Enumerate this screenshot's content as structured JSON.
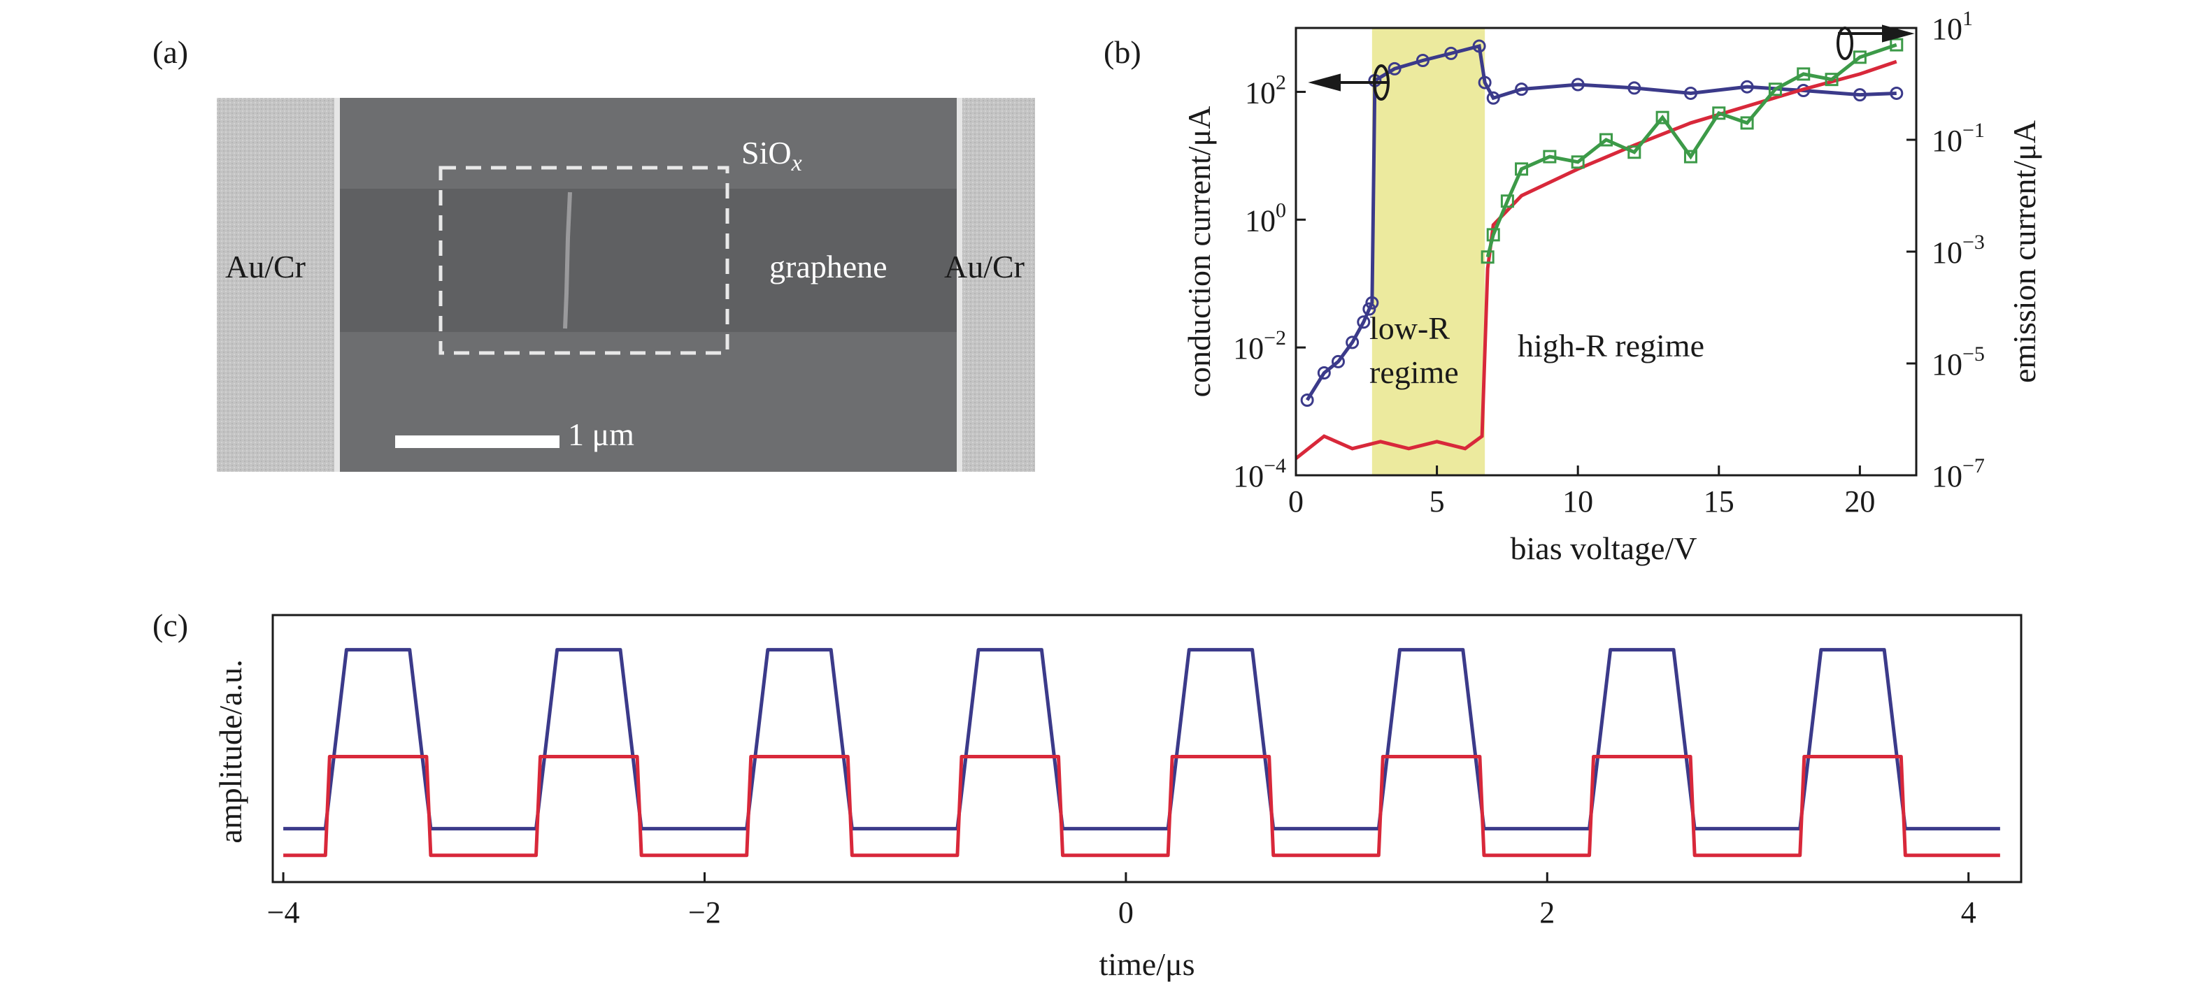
{
  "panels": {
    "a": {
      "label": "(a)",
      "electrode_left_label": "Au/Cr",
      "electrode_right_label": "Au/Cr",
      "oxide_label_main": "SiO",
      "oxide_label_sub": "x",
      "graphene_label": "graphene",
      "scalebar_label": "1 μm"
    },
    "b": {
      "label": "(b)",
      "annotation_low_line1": "low-R",
      "annotation_low_line2": "regime",
      "annotation_high": "high-R regime"
    },
    "c": {
      "label": "(c)"
    }
  },
  "colors": {
    "blue_trace": "#3b3a8a",
    "red_trace": "#d8283a",
    "green_trace": "#3c9a48",
    "highlight": "#ecea9e",
    "sem_background": "#6d6e70",
    "electrode": "#c8c8c8"
  },
  "chart_data": [
    {
      "type": "line",
      "panel": "b",
      "xlabel": "bias voltage/V",
      "ylabel": "conduction current/μA",
      "y2label": "emission current/μA",
      "xlim": [
        0,
        22
      ],
      "ylim": [
        0.0001,
        1000
      ],
      "y2lim": [
        1e-07,
        10
      ],
      "yscale": "log",
      "y2scale": "log",
      "x_ticks": [
        "0",
        "5",
        "10",
        "15",
        "20"
      ],
      "y_ticks": [
        {
          "base": "10",
          "exp": "−4",
          "value": -4
        },
        {
          "base": "10",
          "exp": "−2",
          "value": -2
        },
        {
          "base": "10",
          "exp": "0",
          "value": 0
        },
        {
          "base": "10",
          "exp": "2",
          "value": 2
        }
      ],
      "y2_ticks": [
        {
          "base": "10",
          "exp": "−7",
          "value": -7
        },
        {
          "base": "10",
          "exp": "−5",
          "value": -5
        },
        {
          "base": "10",
          "exp": "−3",
          "value": -3
        },
        {
          "base": "10",
          "exp": "−1",
          "value": -1
        },
        {
          "base": "10",
          "exp": "1",
          "value": 1
        }
      ],
      "shaded_region": {
        "x": [
          2.7,
          6.7
        ]
      },
      "series": [
        {
          "color": "blue",
          "axis": "left",
          "x": [
            0.4,
            1.0,
            1.5,
            2.0,
            2.4,
            2.6,
            2.7,
            2.8,
            3.5,
            4.5,
            5.5,
            6.5,
            6.7,
            7.0,
            8.0,
            10.0,
            12.0,
            14.0,
            16.0,
            18.0,
            20.0,
            21.3
          ],
          "y": [
            0.0015,
            0.004,
            0.006,
            0.012,
            0.025,
            0.04,
            0.05,
            150,
            230,
            310,
            400,
            520,
            140,
            80,
            110,
            130,
            115,
            95,
            120,
            105,
            90,
            95
          ]
        },
        {
          "color": "red",
          "axis": "right",
          "x": [
            0.0,
            1.0,
            2.0,
            3.0,
            4.0,
            5.0,
            6.0,
            6.6,
            6.8,
            7.0,
            8.0,
            10.0,
            12.0,
            14.0,
            16.0,
            18.0,
            20.0,
            21.3
          ],
          "y": [
            2e-07,
            5e-07,
            3e-07,
            4e-07,
            3e-07,
            4e-07,
            3e-07,
            5e-07,
            0.0005,
            0.003,
            0.01,
            0.03,
            0.08,
            0.2,
            0.4,
            0.8,
            1.5,
            2.5
          ]
        },
        {
          "color": "green",
          "axis": "right",
          "x": [
            6.8,
            7.0,
            7.5,
            8.0,
            9.0,
            10.0,
            11.0,
            12.0,
            13.0,
            14.0,
            15.0,
            16.0,
            17.0,
            18.0,
            19.0,
            20.0,
            21.3
          ],
          "y": [
            0.0008,
            0.002,
            0.008,
            0.03,
            0.05,
            0.04,
            0.1,
            0.06,
            0.25,
            0.05,
            0.3,
            0.2,
            0.8,
            1.5,
            1.2,
            3.0,
            5.0
          ]
        }
      ]
    },
    {
      "type": "line",
      "panel": "c",
      "xlabel": "time/μs",
      "ylabel": "amplitude/a.u.",
      "xlim": [
        -4.05,
        4.25
      ],
      "x_ticks": [
        "−4",
        "−2",
        "0",
        "2",
        "4"
      ],
      "x_tick_values": [
        -4,
        -2,
        0,
        2,
        4
      ],
      "series": [
        {
          "color": "blue",
          "pulse_starts": [
            -3.8,
            -2.8,
            -1.8,
            -0.8,
            0.2,
            1.2,
            2.2,
            3.2
          ],
          "pulse_width": 0.5,
          "low": 0.2,
          "high": 0.87
        },
        {
          "color": "red",
          "pulse_starts": [
            -3.8,
            -2.8,
            -1.8,
            -0.8,
            0.2,
            1.2,
            2.2,
            3.2
          ],
          "pulse_width": 0.5,
          "low": 0.1,
          "high": 0.47
        }
      ]
    }
  ]
}
